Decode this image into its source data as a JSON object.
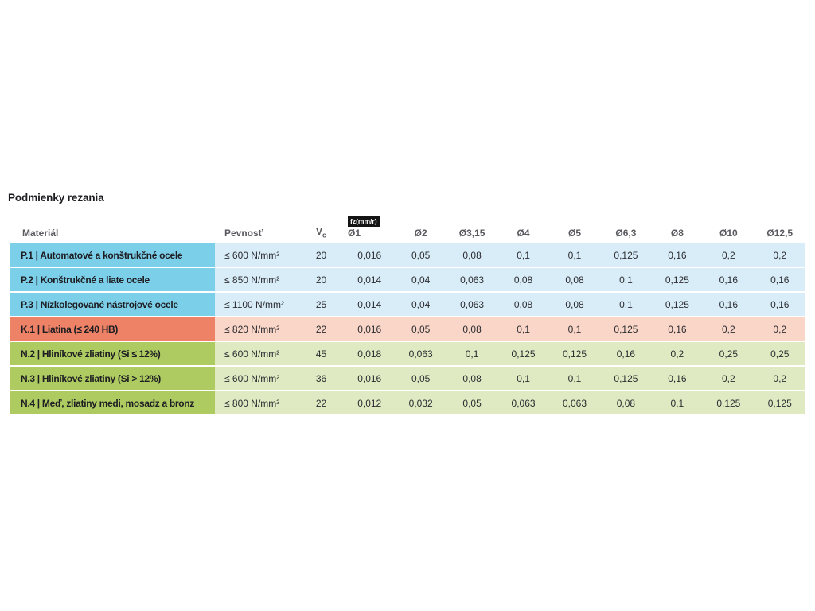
{
  "page": {
    "title": "Podmienky rezania"
  },
  "table": {
    "header": {
      "material": "Materiál",
      "strength": "Pevnosť",
      "vc": "V",
      "vc_subscript": "c",
      "feed_unit_badge": "fz(mm/r)",
      "diameters": [
        "Ø1",
        "Ø2",
        "Ø3,15",
        "Ø4",
        "Ø5",
        "Ø6,3",
        "Ø8",
        "Ø10",
        "Ø12,5"
      ]
    },
    "colors": {
      "steel": {
        "dark": "#7ccfe9",
        "light": "#d8edf8"
      },
      "cast_iron": {
        "dark": "#ee8266",
        "light": "#f9d6c7"
      },
      "non_ferrous": {
        "dark": "#aecb61",
        "light": "#dfeac2"
      }
    },
    "rows": [
      {
        "group": "steel",
        "material": "P.1 | Automatové a konštrukčné ocele",
        "strength": "≤ 600 N/mm²",
        "vc": "20",
        "feeds": [
          "0,016",
          "0,05",
          "0,08",
          "0,1",
          "0,1",
          "0,125",
          "0,16",
          "0,2",
          "0,2"
        ]
      },
      {
        "group": "steel",
        "material": "P.2 | Konštrukčné a liate ocele",
        "strength": "≤ 850 N/mm²",
        "vc": "20",
        "feeds": [
          "0,014",
          "0,04",
          "0,063",
          "0,08",
          "0,08",
          "0,1",
          "0,125",
          "0,16",
          "0,16"
        ]
      },
      {
        "group": "steel",
        "material": "P.3 | Nízkolegované nástrojové ocele",
        "strength": "≤ 1100 N/mm²",
        "vc": "25",
        "feeds": [
          "0,014",
          "0,04",
          "0,063",
          "0,08",
          "0,08",
          "0,1",
          "0,125",
          "0,16",
          "0,16"
        ]
      },
      {
        "group": "cast_iron",
        "material": "K.1 | Liatina (≤ 240 HB)",
        "strength": "≤ 820 N/mm²",
        "vc": "22",
        "feeds": [
          "0,016",
          "0,05",
          "0,08",
          "0,1",
          "0,1",
          "0,125",
          "0,16",
          "0,2",
          "0,2"
        ]
      },
      {
        "group": "non_ferrous",
        "material": "N.2 | Hliníkové zliatiny (Si ≤ 12%)",
        "strength": "≤ 600 N/mm²",
        "vc": "45",
        "feeds": [
          "0,018",
          "0,063",
          "0,1",
          "0,125",
          "0,125",
          "0,16",
          "0,2",
          "0,25",
          "0,25"
        ]
      },
      {
        "group": "non_ferrous",
        "material": "N.3 | Hliníkové zliatiny (Si > 12%)",
        "strength": "≤ 600 N/mm²",
        "vc": "36",
        "feeds": [
          "0,016",
          "0,05",
          "0,08",
          "0,1",
          "0,1",
          "0,125",
          "0,16",
          "0,2",
          "0,2"
        ]
      },
      {
        "group": "non_ferrous",
        "material": "N.4 | Meď, zliatiny medi, mosadz a bronz",
        "strength": "≤ 800 N/mm²",
        "vc": "22",
        "feeds": [
          "0,012",
          "0,032",
          "0,05",
          "0,063",
          "0,063",
          "0,08",
          "0,1",
          "0,125",
          "0,125"
        ]
      }
    ]
  }
}
